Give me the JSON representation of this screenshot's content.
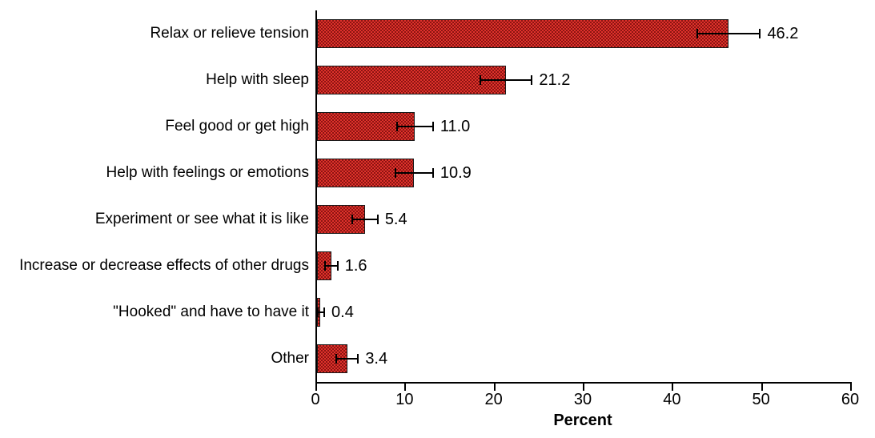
{
  "figure": {
    "background_color": "#ffffff",
    "axis_color": "#000000",
    "text_color": "#000000"
  },
  "chart_data": {
    "type": "bar",
    "orientation": "horizontal",
    "title": "",
    "xlabel": "Percent",
    "ylabel": "",
    "xlim": [
      0,
      60
    ],
    "x_ticks": [
      0,
      10,
      20,
      30,
      40,
      50,
      60
    ],
    "x_tick_labels": [
      "0",
      "10",
      "20",
      "30",
      "40",
      "50",
      "60"
    ],
    "grid": false,
    "legend": false,
    "categories": [
      "Relax or relieve tension",
      "Help with sleep",
      "Feel good or get high",
      "Help with feelings or emotions",
      "Experiment or see what it is like",
      "Increase or decrease effects of other drugs",
      "\"Hooked\" and have to have it",
      "Other"
    ],
    "values": [
      46.2,
      21.2,
      11.0,
      10.9,
      5.4,
      1.6,
      0.4,
      3.4
    ],
    "value_labels": [
      "46.2",
      "21.2",
      "11.0",
      "10.9",
      "5.4",
      "1.6",
      "0.4",
      "3.4"
    ],
    "error_bars": [
      3.6,
      3.0,
      2.1,
      2.2,
      1.5,
      0.8,
      0.5,
      1.3
    ],
    "bar_color": "#df322c",
    "bar_pattern_color": "#8c1411",
    "bar_border_color": "#1a1a1a"
  }
}
